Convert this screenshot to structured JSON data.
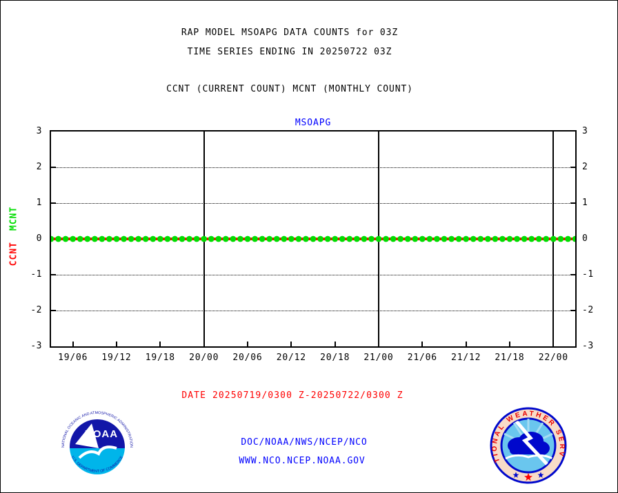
{
  "page": {
    "title_line1": "RAP MODEL MSOAPG DATA COUNTS for 03Z",
    "title_line2": "TIME SERIES ENDING IN 20250722 03Z",
    "legend_line": "CCNT (CURRENT COUNT) MCNT (MONTHLY COUNT)"
  },
  "chart": {
    "title": "MSOAPG",
    "left_axis_labels": {
      "ccnt": "CCNT",
      "mcnt": "MCNT"
    }
  },
  "chart_data": {
    "type": "line",
    "title": "MSOAPG",
    "ylim": [
      -3,
      3
    ],
    "y_ticks": [
      3,
      2,
      1,
      0,
      -1,
      -2,
      -3
    ],
    "grid_y": [
      2,
      1,
      -1,
      -2
    ],
    "x_range_hours": [
      0,
      72
    ],
    "x_ticks": [
      {
        "hour": 3,
        "label": "19/06"
      },
      {
        "hour": 9,
        "label": "19/12"
      },
      {
        "hour": 15,
        "label": "19/18"
      },
      {
        "hour": 21,
        "label": "20/00"
      },
      {
        "hour": 27,
        "label": "20/06"
      },
      {
        "hour": 33,
        "label": "20/12"
      },
      {
        "hour": 39,
        "label": "20/18"
      },
      {
        "hour": 45,
        "label": "21/00"
      },
      {
        "hour": 51,
        "label": "21/06"
      },
      {
        "hour": 57,
        "label": "21/12"
      },
      {
        "hour": 63,
        "label": "21/18"
      },
      {
        "hour": 69,
        "label": "22/00"
      }
    ],
    "day_line_hours": [
      21,
      45,
      69
    ],
    "x_hours": [
      0,
      1,
      2,
      3,
      4,
      5,
      6,
      7,
      8,
      9,
      10,
      11,
      12,
      13,
      14,
      15,
      16,
      17,
      18,
      19,
      20,
      21,
      22,
      23,
      24,
      25,
      26,
      27,
      28,
      29,
      30,
      31,
      32,
      33,
      34,
      35,
      36,
      37,
      38,
      39,
      40,
      41,
      42,
      43,
      44,
      45,
      46,
      47,
      48,
      49,
      50,
      51,
      52,
      53,
      54,
      55,
      56,
      57,
      58,
      59,
      60,
      61,
      62,
      63,
      64,
      65,
      66,
      67,
      68,
      69,
      70,
      71,
      72
    ],
    "series": [
      {
        "name": "CCNT",
        "color": "#ff0000",
        "style": "line",
        "values": [
          0,
          0,
          0,
          0,
          0,
          0,
          0,
          0,
          0,
          0,
          0,
          0,
          0,
          0,
          0,
          0,
          0,
          0,
          0,
          0,
          0,
          0,
          0,
          0,
          0,
          0,
          0,
          0,
          0,
          0,
          0,
          0,
          0,
          0,
          0,
          0,
          0,
          0,
          0,
          0,
          0,
          0,
          0,
          0,
          0,
          0,
          0,
          0,
          0,
          0,
          0,
          0,
          0,
          0,
          0,
          0,
          0,
          0,
          0,
          0,
          0,
          0,
          0,
          0,
          0,
          0,
          0,
          0,
          0,
          0,
          0,
          0,
          0
        ]
      },
      {
        "name": "MCNT",
        "color": "#00dd00",
        "style": "dots",
        "values": [
          0,
          0,
          0,
          0,
          0,
          0,
          0,
          0,
          0,
          0,
          0,
          0,
          0,
          0,
          0,
          0,
          0,
          0,
          0,
          0,
          0,
          0,
          0,
          0,
          0,
          0,
          0,
          0,
          0,
          0,
          0,
          0,
          0,
          0,
          0,
          0,
          0,
          0,
          0,
          0,
          0,
          0,
          0,
          0,
          0,
          0,
          0,
          0,
          0,
          0,
          0,
          0,
          0,
          0,
          0,
          0,
          0,
          0,
          0,
          0,
          0,
          0,
          0,
          0,
          0,
          0,
          0,
          0,
          0,
          0,
          0,
          0,
          0
        ]
      }
    ]
  },
  "footer": {
    "date_range": "DATE 20250719/0300 Z-20250722/0300 Z",
    "org": "DOC/NOAA/NWS/NCEP/NCO",
    "url": "WWW.NCO.NCEP.NOAA.GOV"
  },
  "logos": {
    "noaa": {
      "ring_top": "NATIONAL OCEANIC AND ATMOSPHERIC ADMINISTRATION",
      "ring_bottom": "U.S. DEPARTMENT OF COMMERCE",
      "acronym": "NOAA"
    },
    "nws": {
      "ring": "NATIONAL WEATHER SERVICE"
    }
  },
  "colors": {
    "accent_blue": "#0000ff",
    "ccnt_red": "#ff0000",
    "mcnt_green": "#00dd00"
  }
}
